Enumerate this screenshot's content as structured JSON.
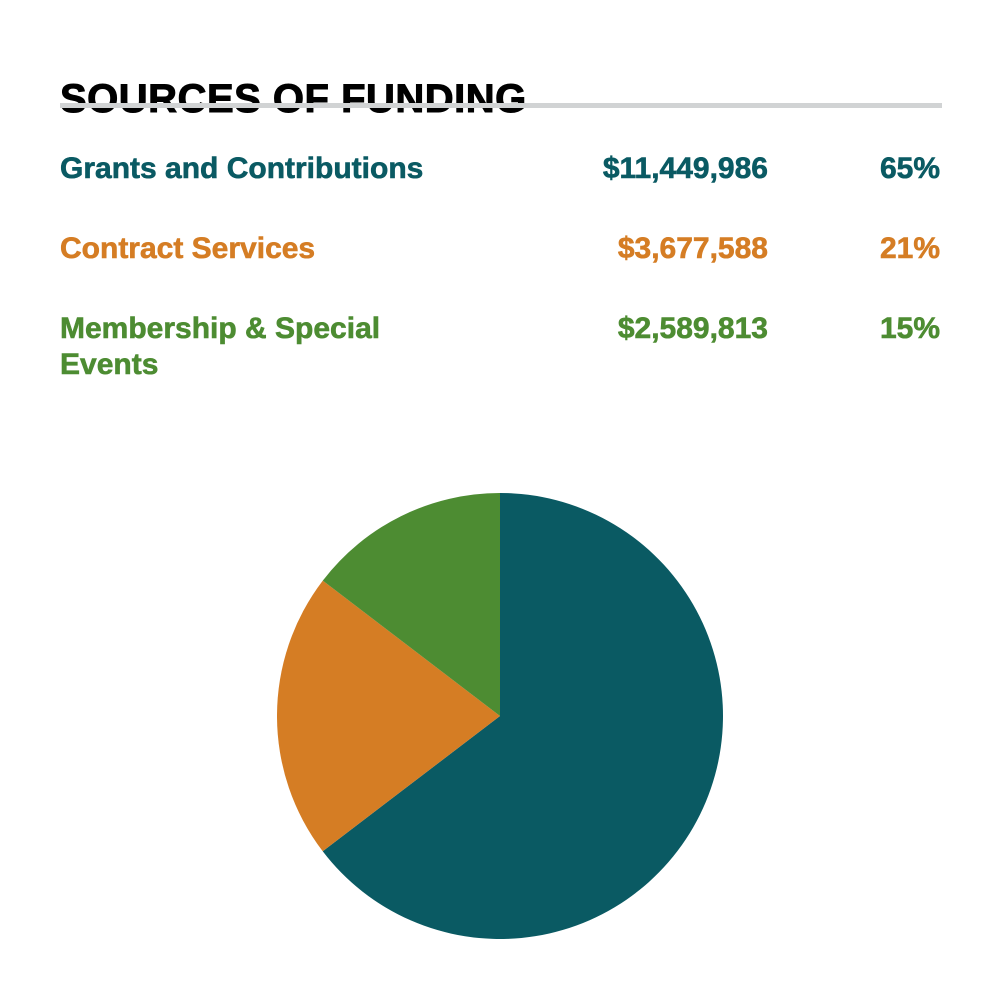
{
  "header": {
    "title": "SOURCES OF FUNDING",
    "rule_color": "#D1D3D4"
  },
  "funding_table": {
    "rows": [
      {
        "label": "Grants and Contributions",
        "amount": "$11,449,986",
        "percent": "65%",
        "color": "#0A5A63",
        "value": 11449986
      },
      {
        "label": "Contract Services",
        "amount": "$3,677,588",
        "percent": "21%",
        "color": "#D57D24",
        "value": 3677588
      },
      {
        "label": "Membership & Special Events",
        "amount": "$2,589,813",
        "percent": "15%",
        "color": "#4D8C32",
        "value": 2589813
      }
    ]
  },
  "chart_data": {
    "type": "pie",
    "title": "SOURCES OF FUNDING",
    "categories": [
      "Grants and Contributions",
      "Contract Services",
      "Membership & Special Events"
    ],
    "values": [
      11449986,
      3677588,
      2589813
    ],
    "percent_labels": [
      "65%",
      "21%",
      "15%"
    ],
    "amount_labels": [
      "$11,449,986",
      "$3,677,588",
      "$2,589,813"
    ],
    "colors": [
      "#0A5A63",
      "#D57D24",
      "#4D8C32"
    ],
    "start_angle_deg": 0,
    "direction": "clockwise",
    "legend_position": "table-above",
    "slice_labels_on_chart": false
  }
}
